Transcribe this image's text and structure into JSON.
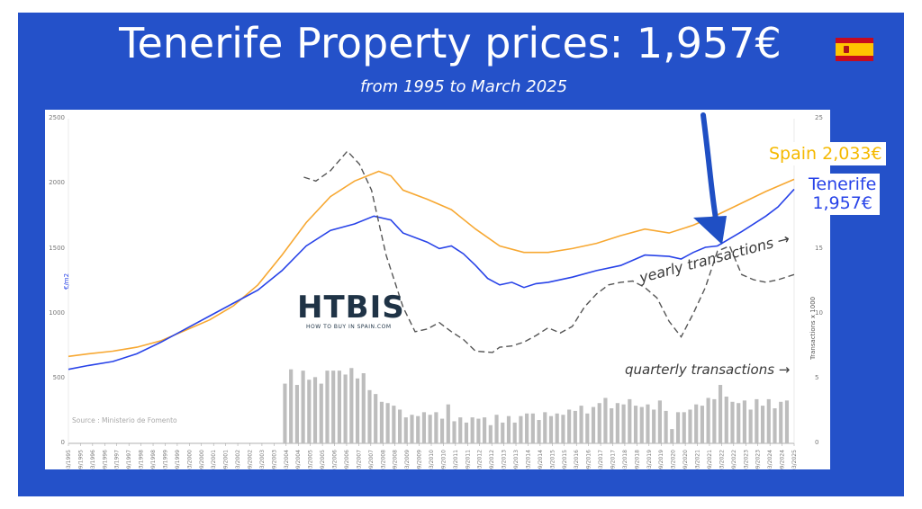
{
  "header": {
    "title": "Tenerife Property prices: 1,957€",
    "subtitle": "from 1995 to March 2025",
    "flag_icon": "spain-flag-icon"
  },
  "labels": {
    "spain": "Spain 2,033€",
    "tenerife_line1": "Tenerife",
    "tenerife_line2": "1,957€",
    "yearly": "yearly transactions →",
    "quarterly": "quarterly transactions →",
    "source": "Source : Ministerio de Fomento",
    "logo_main": "HTBIS",
    "logo_sub": "HOW TO BUY IN SPAIN.COM"
  },
  "chart_data": {
    "type": "line",
    "xlabel": "",
    "ylabel": "€/m2",
    "y2label": "Transactions x 1000",
    "ylim": [
      0,
      2500
    ],
    "y2lim": [
      0,
      25
    ],
    "yticks": [
      "0",
      "500",
      "1000",
      "1500",
      "2000",
      "2500"
    ],
    "y2ticks": [
      "0",
      "5",
      "10",
      "15",
      "20",
      "25"
    ],
    "grid": false,
    "colors": {
      "spain": "#f7a832",
      "tenerife": "#2843e8",
      "yearly": "#555555",
      "quarterly": "#bdbdbd",
      "arrow": "#1f4fc4"
    },
    "x_start": "03/1995",
    "x_end": "03/2025",
    "x_tick_labels": [
      "03/1995",
      "09/1995",
      "03/1996",
      "09/1996",
      "03/1997",
      "09/1997",
      "03/1998",
      "09/1998",
      "03/1999",
      "09/1999",
      "03/2000",
      "09/2000",
      "03/2001",
      "09/2001",
      "03/2002",
      "09/2002",
      "03/2003",
      "09/2003",
      "03/2004",
      "09/2004",
      "03/2005",
      "09/2005",
      "03/2006",
      "09/2006",
      "03/2007",
      "09/2007",
      "03/2008",
      "09/2008",
      "03/2009",
      "09/2009",
      "03/2010",
      "09/2010",
      "03/2011",
      "09/2011",
      "03/2012",
      "09/2012",
      "03/2013",
      "09/2013",
      "03/2014",
      "09/2014",
      "03/2015",
      "09/2015",
      "03/2016",
      "09/2016",
      "03/2017",
      "09/2017",
      "03/2018",
      "09/2018",
      "03/2019",
      "09/2019",
      "03/2020",
      "09/2020",
      "03/2021",
      "09/2021",
      "03/2022",
      "09/2022",
      "03/2023",
      "09/2023",
      "03/2024",
      "09/2024",
      "03/2025"
    ],
    "series": [
      {
        "name": "Spain",
        "axis": "left",
        "x": [
          1995.17,
          1996,
          1997,
          1998,
          1999,
          2000,
          2001,
          2002,
          2003,
          2004,
          2005,
          2006,
          2007,
          2008,
          2008.5,
          2009,
          2010,
          2011,
          2012,
          2013,
          2014,
          2015,
          2016,
          2017,
          2018,
          2019,
          2020,
          2021,
          2022,
          2023,
          2024,
          2025.17
        ],
        "values": [
          670,
          690,
          710,
          740,
          790,
          870,
          950,
          1060,
          1220,
          1450,
          1700,
          1900,
          2020,
          2095,
          2060,
          1950,
          1880,
          1800,
          1650,
          1520,
          1470,
          1470,
          1500,
          1540,
          1600,
          1650,
          1620,
          1680,
          1760,
          1850,
          1940,
          2033
        ]
      },
      {
        "name": "Tenerife",
        "axis": "left",
        "x": [
          1995.17,
          1996,
          1997,
          1998,
          1999,
          2000,
          2001,
          2002,
          2003,
          2004,
          2005,
          2006,
          2007,
          2007.8,
          2008.5,
          2009,
          2010,
          2010.5,
          2011,
          2011.5,
          2012,
          2012.5,
          2013,
          2013.5,
          2014,
          2014.5,
          2015,
          2016,
          2017,
          2018,
          2019,
          2020,
          2020.5,
          2021,
          2021.5,
          2022,
          2023,
          2024,
          2024.5,
          2025.17
        ],
        "values": [
          570,
          600,
          630,
          690,
          780,
          880,
          980,
          1080,
          1180,
          1330,
          1520,
          1640,
          1690,
          1750,
          1720,
          1620,
          1550,
          1500,
          1520,
          1460,
          1370,
          1270,
          1220,
          1240,
          1200,
          1230,
          1240,
          1280,
          1330,
          1370,
          1450,
          1440,
          1420,
          1470,
          1510,
          1520,
          1630,
          1750,
          1820,
          1957
        ]
      },
      {
        "name": "yearly transactions",
        "axis": "right",
        "x": [
          2004.9,
          2005.4,
          2006,
          2006.7,
          2007.2,
          2007.7,
          2008.3,
          2009,
          2009.5,
          2010,
          2010.5,
          2011,
          2011.5,
          2012,
          2012.7,
          2013,
          2013.5,
          2014,
          2014.5,
          2015,
          2015.5,
          2016,
          2016.5,
          2017,
          2017.5,
          2018,
          2018.5,
          2019,
          2019.5,
          2020,
          2020.5,
          2021,
          2021.5,
          2022,
          2022.5,
          2023,
          2023.5,
          2024,
          2024.5,
          2025.17
        ],
        "values": [
          20.5,
          20.2,
          21,
          22.5,
          21.5,
          19.5,
          14.5,
          10.5,
          8.6,
          8.8,
          9.3,
          8.6,
          8.0,
          7.1,
          7.0,
          7.4,
          7.5,
          7.8,
          8.3,
          8.9,
          8.5,
          9.0,
          10.5,
          11.5,
          12.2,
          12.4,
          12.5,
          12.0,
          11.2,
          9.4,
          8.2,
          10.0,
          12.0,
          14.8,
          15.2,
          13.0,
          12.6,
          12.4,
          12.6,
          13.0
        ]
      },
      {
        "name": "quarterly transactions",
        "axis": "right",
        "type": "bar",
        "x_start": 2004.0,
        "values": [
          4.6,
          5.7,
          4.5,
          5.6,
          4.9,
          5.1,
          4.6,
          5.6,
          5.6,
          5.6,
          5.3,
          5.8,
          5.0,
          5.4,
          4.1,
          3.8,
          3.2,
          3.1,
          2.9,
          2.6,
          2.0,
          2.2,
          2.1,
          2.4,
          2.2,
          2.4,
          1.9,
          3.0,
          1.7,
          2.0,
          1.6,
          2.0,
          1.9,
          2.0,
          1.4,
          2.2,
          1.6,
          2.1,
          1.6,
          2.1,
          2.3,
          2.3,
          1.8,
          2.4,
          2.1,
          2.3,
          2.2,
          2.6,
          2.5,
          2.9,
          2.3,
          2.8,
          3.1,
          3.5,
          2.7,
          3.1,
          3.0,
          3.4,
          2.9,
          2.8,
          3.0,
          2.6,
          3.3,
          2.5,
          1.1,
          2.4,
          2.4,
          2.6,
          3.0,
          2.9,
          3.5,
          3.4,
          4.5,
          3.6,
          3.2,
          3.1,
          3.3,
          2.6,
          3.4,
          2.9,
          3.4,
          2.7,
          3.2,
          3.3
        ]
      }
    ]
  }
}
